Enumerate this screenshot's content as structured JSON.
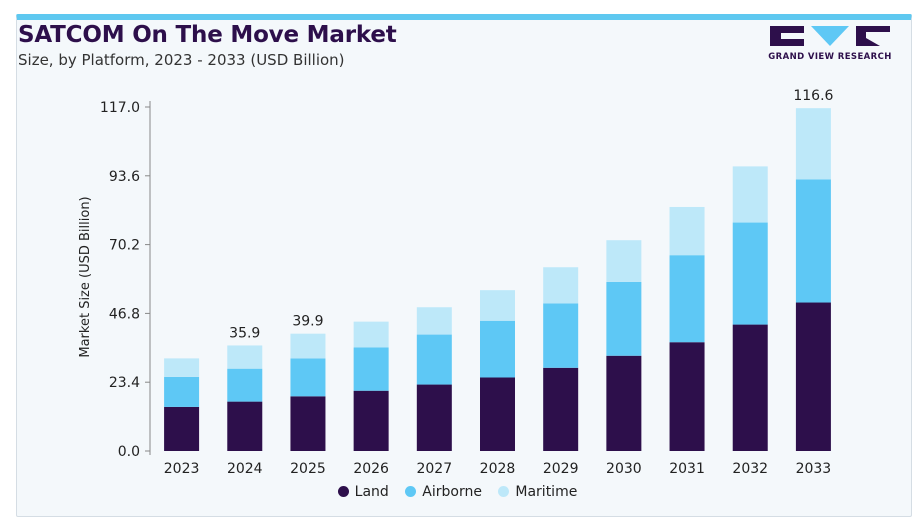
{
  "header": {
    "title": "SATCOM On The Move Market",
    "subtitle": "Size, by Platform, 2023 - 2033 (USD Billion)",
    "logo_text": "GRAND VIEW RESEARCH"
  },
  "colors": {
    "land": "#2d0f4b",
    "airborne": "#5ec8f5",
    "maritime": "#bde8f9",
    "accent": "#5ec8f0"
  },
  "chart_data": {
    "type": "bar",
    "stacked": true,
    "title": "SATCOM On The Move Market",
    "subtitle": "Size, by Platform, 2023 - 2033 (USD Billion)",
    "xlabel": "",
    "ylabel": "Market Size (USD Billion)",
    "ylim": [
      0,
      117
    ],
    "yticks": [
      "0.0",
      "23.4",
      "46.8",
      "70.2",
      "93.6",
      "117.0"
    ],
    "categories": [
      "2023",
      "2024",
      "2025",
      "2026",
      "2027",
      "2028",
      "2029",
      "2030",
      "2031",
      "2032",
      "2033"
    ],
    "series": [
      {
        "name": "Land",
        "values": [
          15.0,
          16.8,
          18.6,
          20.5,
          22.6,
          25.0,
          28.3,
          32.4,
          37.0,
          43.0,
          50.5
        ]
      },
      {
        "name": "Airborne",
        "values": [
          10.2,
          11.2,
          12.9,
          14.7,
          17.0,
          19.3,
          21.9,
          25.1,
          29.6,
          34.7,
          41.9
        ]
      },
      {
        "name": "Maritime",
        "values": [
          6.3,
          7.9,
          8.4,
          8.8,
          9.3,
          10.4,
          12.3,
          14.2,
          16.4,
          19.1,
          24.2
        ]
      }
    ],
    "data_labels": {
      "1": "35.9",
      "2": "39.9",
      "10": "116.6"
    },
    "grid": false,
    "legend_position": "bottom-center"
  }
}
